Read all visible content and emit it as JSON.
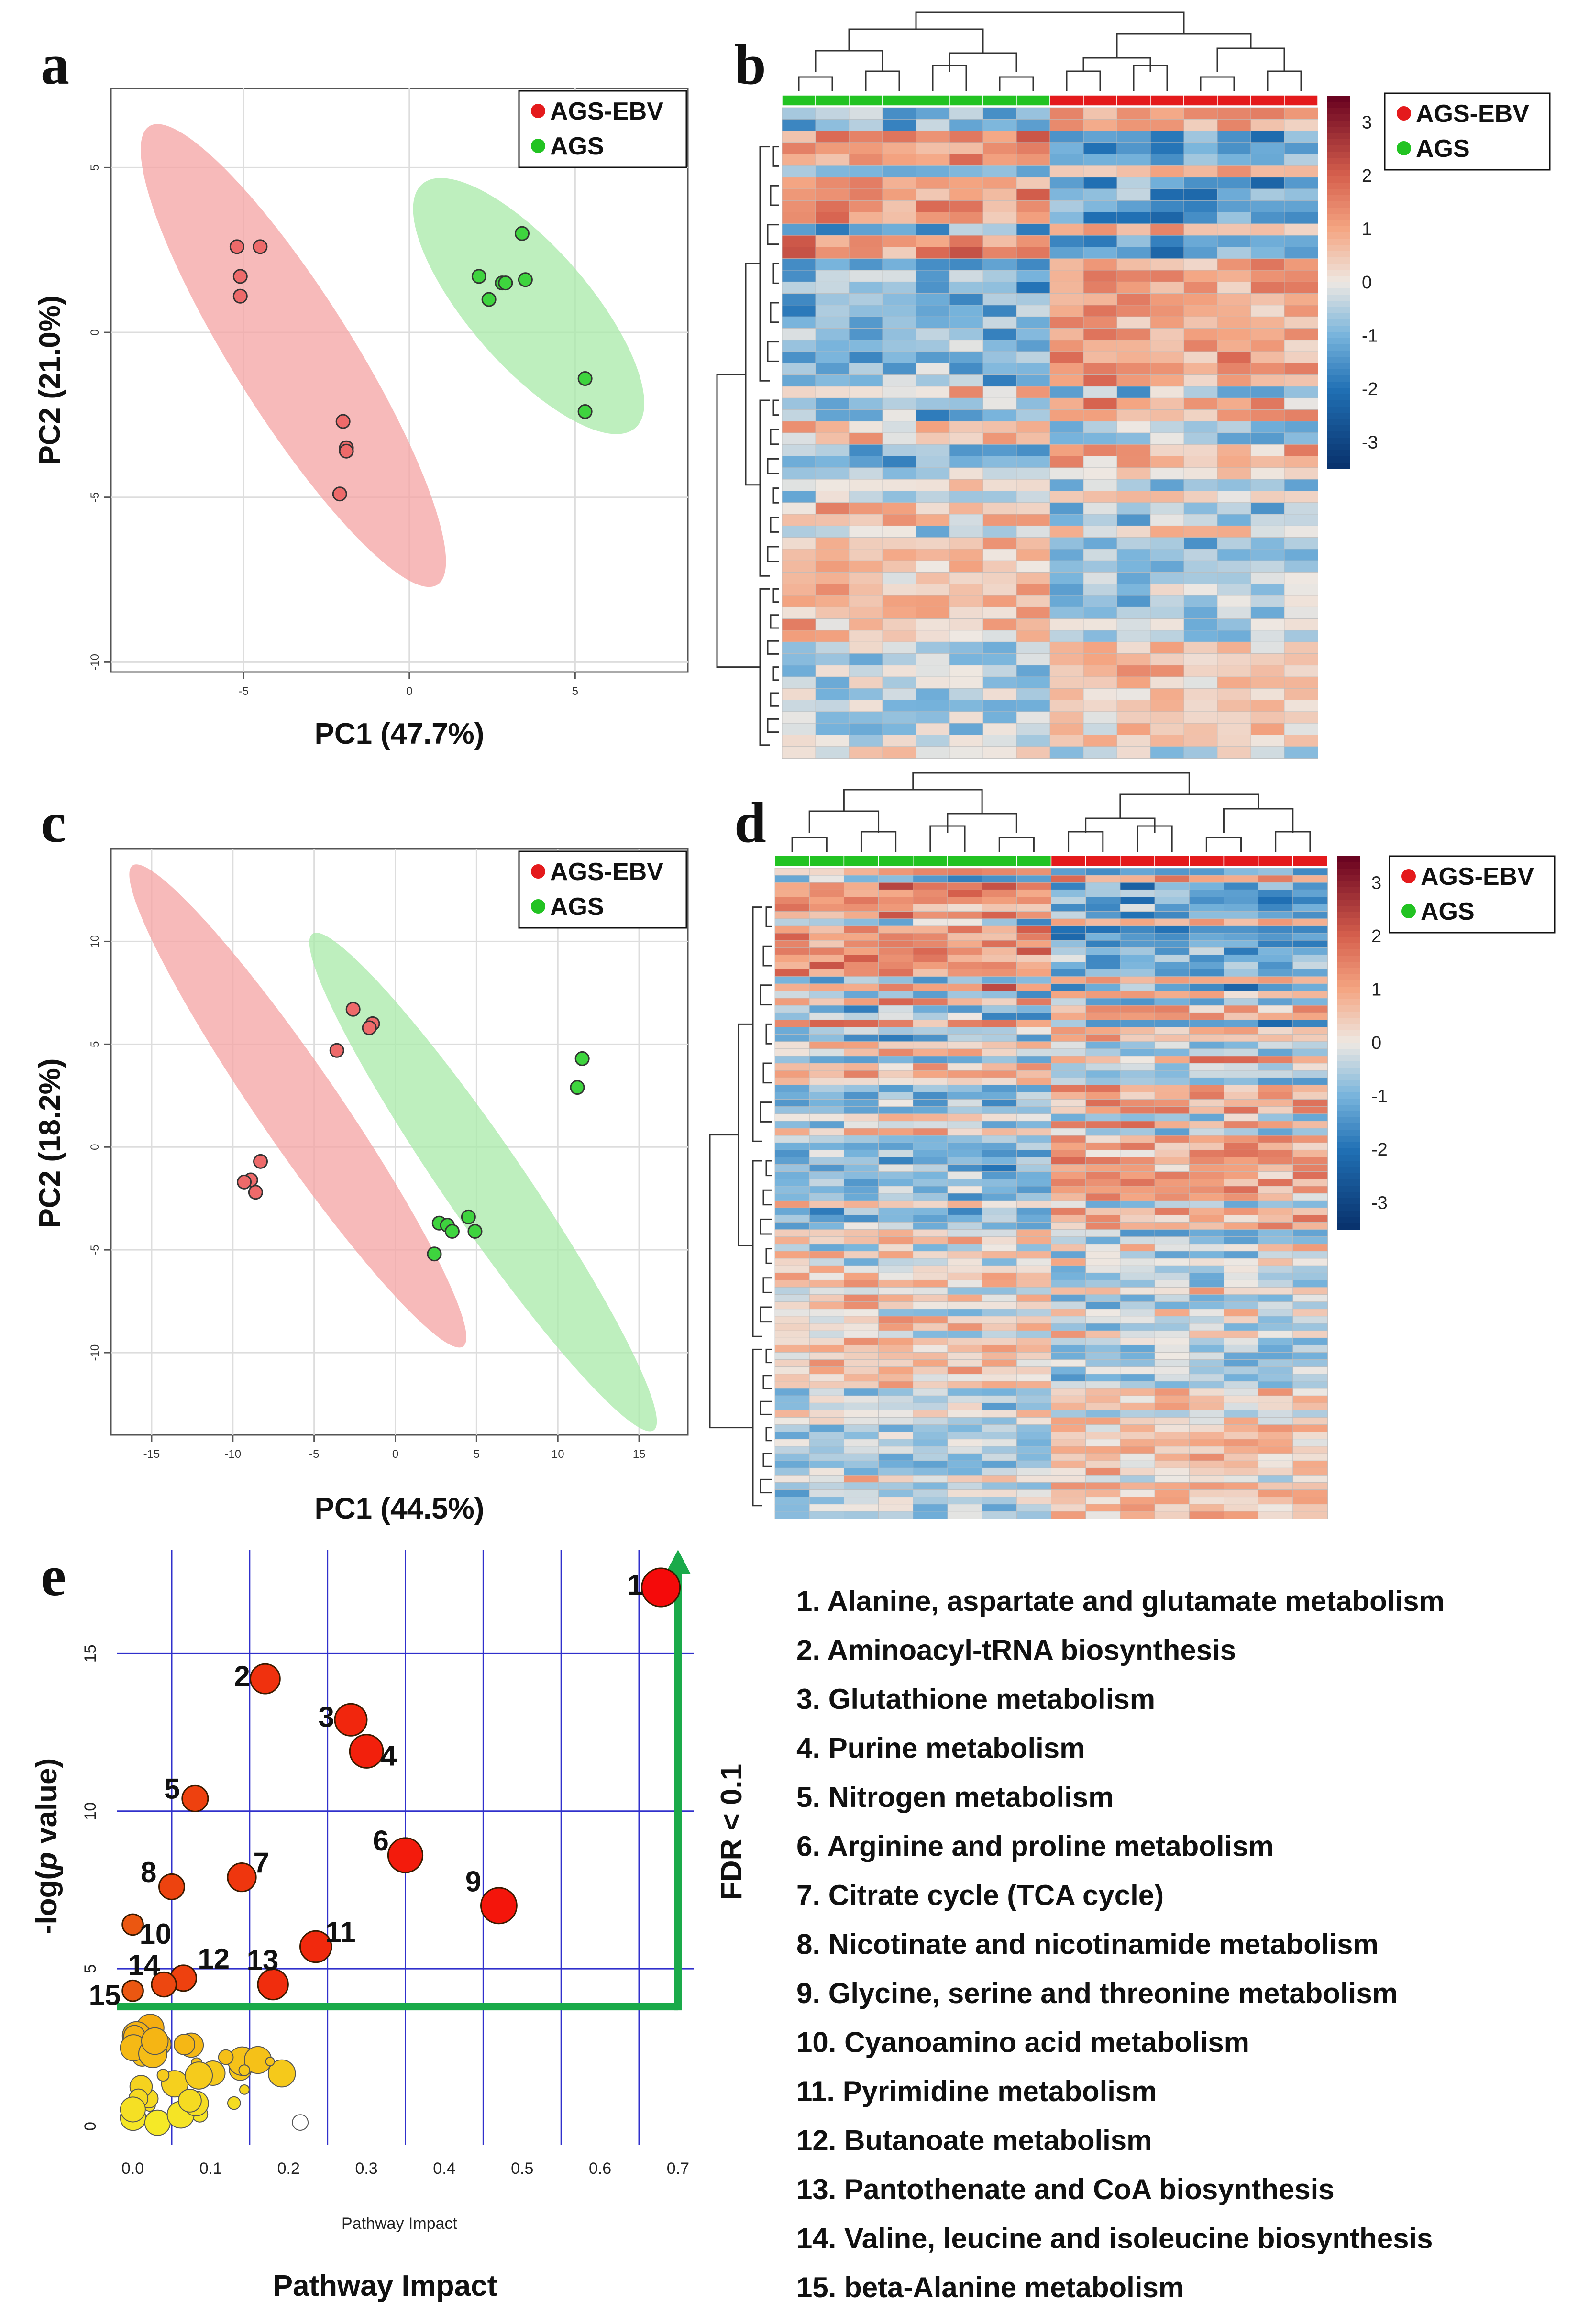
{
  "panels": {
    "a": "a",
    "b": "b",
    "c": "c",
    "d": "d",
    "e": "e"
  },
  "colors": {
    "ebv": "#e41a1c",
    "ags": "#22c322",
    "ebv_ellipse": "#f4a3a3",
    "ags_ellipse": "#a8eaa8",
    "grid_pca": "#dddddd",
    "grid_path": "#3030cc",
    "fdr": "#1aaa4a"
  },
  "chart_data": [
    {
      "id": "a",
      "type": "scatter",
      "title": "",
      "xlabel": "PC1 (47.7%)",
      "ylabel": "PC2 (21.0%)",
      "xlim": [
        -9,
        8.4
      ],
      "ylim": [
        -10.3,
        7.4
      ],
      "xticks": [
        -5,
        0,
        5
      ],
      "yticks": [
        5,
        0,
        -5,
        -10
      ],
      "legend": [
        "AGS-EBV",
        "AGS"
      ],
      "series": [
        {
          "name": "AGS-EBV",
          "x": [
            -5.2,
            -4.5,
            -5.1,
            -5.1,
            -2.0,
            -1.9,
            -1.9,
            -2.1
          ],
          "y": [
            2.6,
            2.6,
            1.7,
            1.1,
            -2.7,
            -3.5,
            -3.6,
            -4.9
          ],
          "ellipse": {
            "cx": -3.5,
            "cy": -0.7,
            "rx": 8.2,
            "ry": 1.8,
            "angle": -58
          }
        },
        {
          "name": "AGS",
          "x": [
            2.1,
            2.4,
            2.8,
            2.9,
            3.5,
            3.4,
            5.3,
            5.3
          ],
          "y": [
            1.7,
            1.0,
            1.5,
            1.5,
            1.6,
            3.0,
            -1.4,
            -2.4
          ],
          "ellipse": {
            "cx": 3.6,
            "cy": 0.8,
            "rx": 4.9,
            "ry": 1.8,
            "angle": -49
          }
        }
      ]
    },
    {
      "id": "b",
      "type": "heatmap",
      "legend": [
        "AGS-EBV",
        "AGS"
      ],
      "colorbar_ticks": [
        "3",
        "2",
        "1",
        "0",
        "-1",
        "-2",
        "-3"
      ],
      "n_cols": 16,
      "n_rows": 56,
      "group_split": 8
    },
    {
      "id": "c",
      "type": "scatter",
      "title": "",
      "xlabel": "PC1 (44.5%)",
      "ylabel": "PC2 (18.2%)",
      "xlim": [
        -17.5,
        18
      ],
      "ylim": [
        -14,
        14.5
      ],
      "xticks": [
        -15,
        -10,
        -5,
        0,
        5,
        10,
        15
      ],
      "yticks": [
        10,
        5,
        0,
        -5,
        -10
      ],
      "legend": [
        "AGS-EBV",
        "AGS"
      ],
      "series": [
        {
          "name": "AGS-EBV",
          "x": [
            -2.6,
            -1.4,
            -1.6,
            -3.6,
            -8.3,
            -8.9,
            -9.3,
            -8.6
          ],
          "y": [
            6.7,
            6.0,
            5.8,
            4.7,
            -0.7,
            -1.6,
            -1.7,
            -2.2
          ],
          "ellipse": {
            "cx": -6.0,
            "cy": 2.0,
            "rx": 15.5,
            "ry": 2.2,
            "angle": -49
          }
        },
        {
          "name": "AGS",
          "x": [
            11.5,
            11.2,
            2.7,
            3.2,
            3.5,
            4.5,
            4.9,
            2.4
          ],
          "y": [
            4.3,
            2.9,
            -3.7,
            -3.8,
            -4.1,
            -3.4,
            -4.1,
            -5.2
          ],
          "ellipse": {
            "cx": 5.4,
            "cy": -1.7,
            "rx": 16.0,
            "ry": 2.2,
            "angle": -49
          }
        }
      ]
    },
    {
      "id": "d",
      "type": "heatmap",
      "legend": [
        "AGS-EBV",
        "AGS"
      ],
      "colorbar_ticks": [
        "3",
        "2",
        "1",
        "0",
        "-1",
        "-2",
        "-3"
      ],
      "n_cols": 16,
      "n_rows": 90,
      "group_split": 8
    },
    {
      "id": "e",
      "type": "scatter",
      "title": "",
      "xlabel": "Pathway Impact",
      "xlabel_small": "Pathway Impact",
      "ylabel": "-log(p value)",
      "xlim": [
        -0.02,
        0.72
      ],
      "ylim": [
        -0.6,
        18.3
      ],
      "xticks": [
        "0.0",
        "0.1",
        "0.2",
        "0.3",
        "0.4",
        "0.5",
        "0.6",
        "0.7"
      ],
      "yticks": [
        "15",
        "10",
        "5",
        "0"
      ],
      "xtick_values": [
        0,
        0.1,
        0.2,
        0.3,
        0.4,
        0.5,
        0.6,
        0.7
      ],
      "ytick_values": [
        15,
        10,
        5,
        0
      ],
      "threshold_y": 3.8,
      "threshold_label": "FDR < 0.1",
      "points": [
        {
          "label": "1",
          "x": 0.678,
          "y": 17.1,
          "size": 1.0
        },
        {
          "label": "2",
          "x": 0.17,
          "y": 14.2,
          "size": 0.65
        },
        {
          "label": "3",
          "x": 0.28,
          "y": 12.9,
          "size": 0.75
        },
        {
          "label": "4",
          "x": 0.3,
          "y": 11.9,
          "size": 0.8
        },
        {
          "label": "5",
          "x": 0.08,
          "y": 10.4,
          "size": 0.5
        },
        {
          "label": "6",
          "x": 0.35,
          "y": 8.6,
          "size": 0.85
        },
        {
          "label": "7",
          "x": 0.14,
          "y": 7.9,
          "size": 0.6
        },
        {
          "label": "8",
          "x": 0.05,
          "y": 7.6,
          "size": 0.48
        },
        {
          "label": "9",
          "x": 0.47,
          "y": 7.0,
          "size": 0.9
        },
        {
          "label": "10",
          "x": 0.0,
          "y": 6.4,
          "size": 0.3
        },
        {
          "label": "11",
          "x": 0.235,
          "y": 5.7,
          "size": 0.72
        },
        {
          "label": "12",
          "x": 0.065,
          "y": 4.7,
          "size": 0.5
        },
        {
          "label": "13",
          "x": 0.18,
          "y": 4.5,
          "size": 0.68
        },
        {
          "label": "14",
          "x": 0.04,
          "y": 4.5,
          "size": 0.45
        },
        {
          "label": "15",
          "x": 0.0,
          "y": 4.3,
          "size": 0.3
        }
      ],
      "pathway_list": [
        "1. Alanine, aspartate and glutamate metabolism",
        "2. Aminoacyl-tRNA biosynthesis",
        "3. Glutathione metabolism",
        "4. Purine metabolism",
        "5. Nitrogen metabolism",
        "6. Arginine and proline metabolism",
        "7. Citrate cycle (TCA cycle)",
        "8. Nicotinate and nicotinamide metabolism",
        "9. Glycine, serine and threonine metabolism",
        "10. Cyanoamino acid metabolism",
        "11. Pyrimidine metabolism",
        "12. Butanoate metabolism",
        "13. Pantothenate and CoA biosynthesis",
        "14. Valine, leucine and isoleucine biosynthesis",
        "15. beta-Alanine metabolism"
      ]
    }
  ]
}
